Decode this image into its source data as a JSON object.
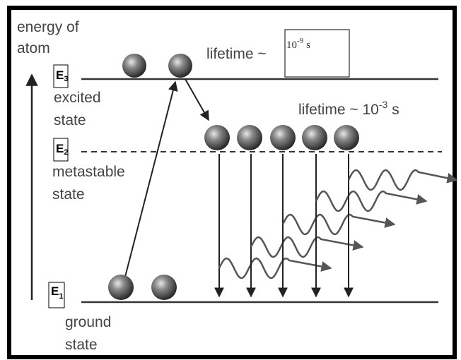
{
  "axis_label": [
    "energy of",
    "atom"
  ],
  "levels": [
    {
      "symbol": "E",
      "index": "3",
      "label": [
        "excited",
        "state"
      ]
    },
    {
      "symbol": "E",
      "index": "2",
      "label": [
        "metastable",
        "state"
      ]
    },
    {
      "symbol": "E",
      "index": "1",
      "label": [
        "ground",
        "state"
      ]
    }
  ],
  "lifetimes": [
    {
      "prefix": "lifetime ~",
      "base": "10",
      "exponent": "-9",
      "unit": "s"
    },
    {
      "prefix": "lifetime ~ 10",
      "exponent": "-3",
      "unit": "s"
    }
  ]
}
